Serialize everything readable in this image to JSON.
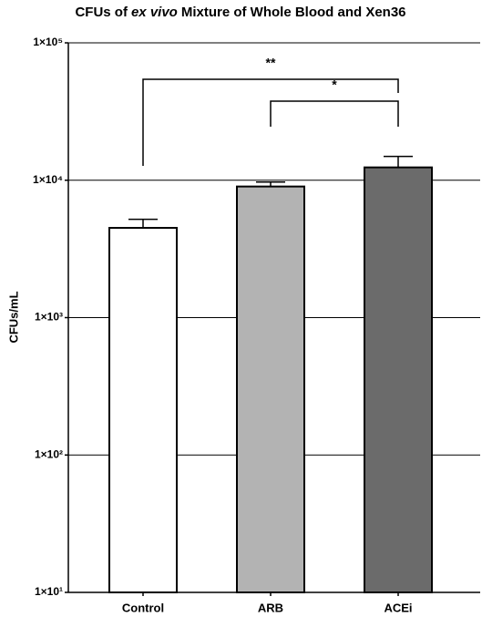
{
  "chart_data": {
    "type": "bar",
    "title": [
      "CFUs of",
      "ex vivo",
      "Mixture of Whole Blood and Xen36"
    ],
    "y_label": "CFUs/mL",
    "categories": [
      "Control",
      "ARB",
      "ACEi"
    ],
    "values": [
      4500,
      9000,
      12400
    ],
    "errors": [
      700,
      700,
      2500
    ],
    "colors": [
      "#ffffff",
      "#b3b3b3",
      "#6b6b6b"
    ],
    "log_scale": true,
    "ylim": [
      10,
      100000
    ],
    "yticks": [
      {
        "value": 10,
        "label": "1×10¹"
      },
      {
        "value": 100,
        "label": "1×10²"
      },
      {
        "value": 1000,
        "label": "1×10³"
      },
      {
        "value": 10000,
        "label": "1×10⁴"
      },
      {
        "value": 100000,
        "label": "1×10⁵"
      }
    ],
    "grid": true,
    "significance": [
      {
        "from": 0,
        "to": 2,
        "label": "**"
      },
      {
        "from": 1,
        "to": 2,
        "label": "*"
      }
    ]
  }
}
